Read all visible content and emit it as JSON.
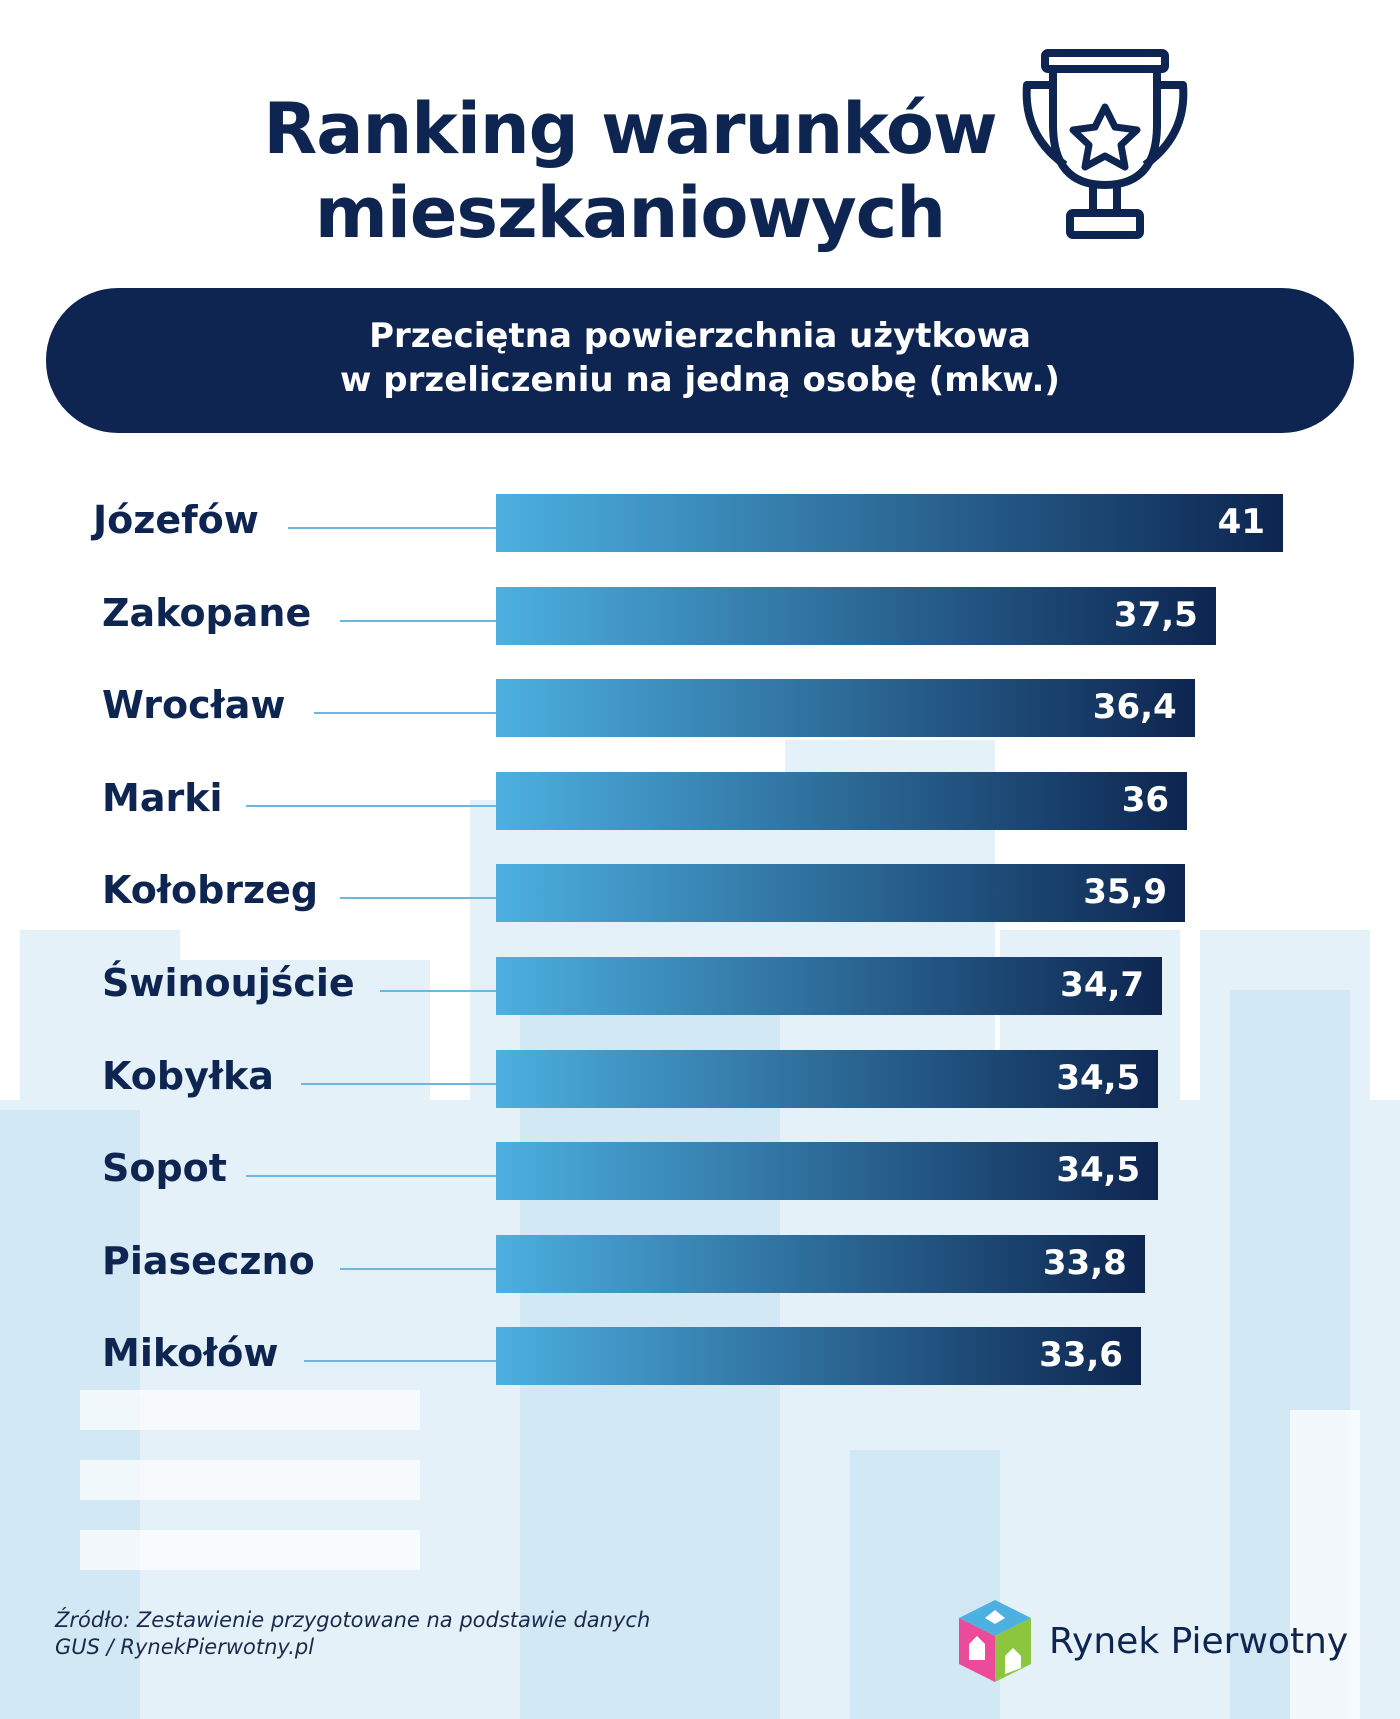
{
  "title": {
    "line1": "Ranking warunków",
    "line2": "mieszkaniowych",
    "icon": "trophy-icon"
  },
  "subtitle": {
    "line1": "Przeciętna powierzchnia użytkowa",
    "line2": "w przeliczeniu na jedną osobę (mkw.)"
  },
  "chart_data": {
    "type": "bar",
    "orientation": "horizontal",
    "categories": [
      "Józefów",
      "Zakopane",
      "Wrocław",
      "Marki",
      "Kołobrzeg",
      "Świnoujście",
      "Kobyłka",
      "Sopot",
      "Piaseczno",
      "Mikołów"
    ],
    "values": [
      41,
      37.5,
      36.4,
      36,
      35.9,
      34.7,
      34.5,
      34.5,
      33.8,
      33.6
    ],
    "value_labels": [
      "41",
      "37,5",
      "36,4",
      "36",
      "35,9",
      "34,7",
      "34,5",
      "34,5",
      "33,8",
      "33,6"
    ],
    "xlim": [
      0,
      41
    ],
    "grid": false,
    "colors": {
      "bar_start": "#4cb0e0",
      "bar_end": "#0d2550",
      "label": "#0d2550"
    }
  },
  "footer": {
    "source_line1": "Źródło: Zestawienie przygotowane na podstawie danych",
    "source_line2": "GUS / RynekPierwotny.pl",
    "logo_text": "Rynek Pierwotny"
  },
  "colors": {
    "navy": "#0d2550",
    "light_blue": "#d6ebf6"
  }
}
